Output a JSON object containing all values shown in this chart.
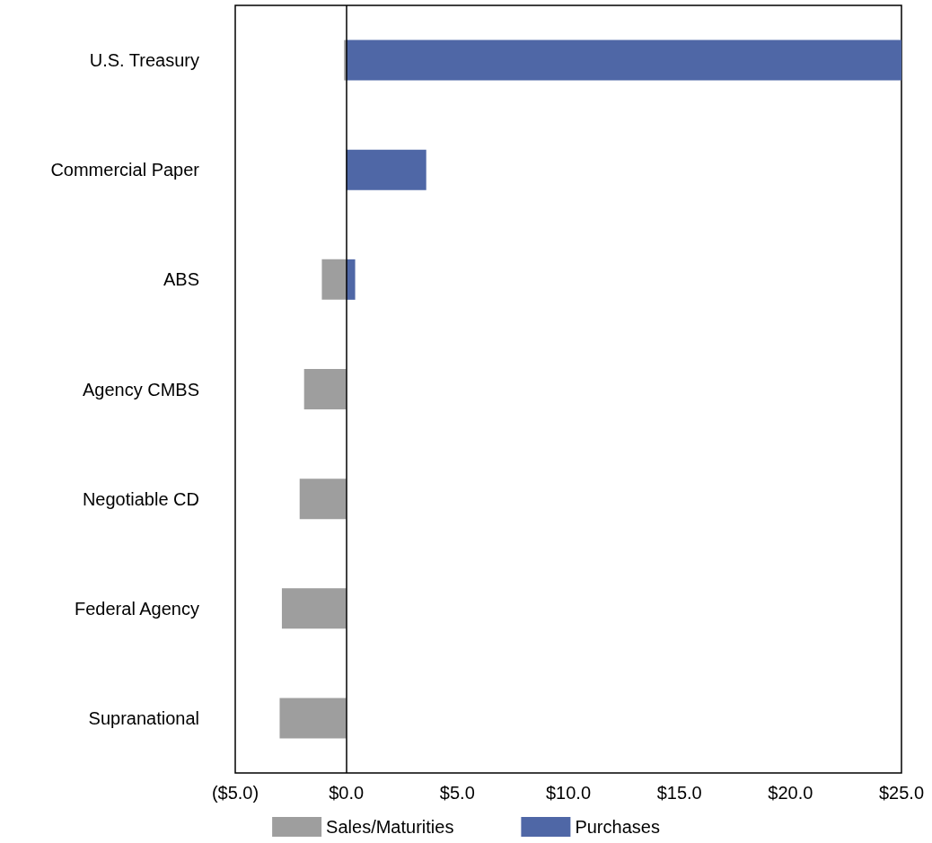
{
  "chart_data": {
    "type": "bar",
    "orientation": "horizontal",
    "stacked": true,
    "categories": [
      "U.S. Treasury",
      "Commercial Paper",
      "ABS",
      "Agency CMBS",
      "Negotiable CD",
      "Federal Agency",
      "Supranational"
    ],
    "series": [
      {
        "name": "Sales/Maturities",
        "color": "#9e9e9e",
        "values": [
          -0.1,
          0,
          -1.1,
          -1.9,
          -2.1,
          -2.9,
          -3.0
        ]
      },
      {
        "name": "Purchases",
        "color": "#4f67a6",
        "values": [
          25.0,
          3.6,
          0.4,
          0,
          0,
          0,
          0
        ]
      }
    ],
    "xlim": [
      -5,
      25
    ],
    "xticks": [
      {
        "value": -5,
        "label": "($5.0)"
      },
      {
        "value": 0,
        "label": "$0.0"
      },
      {
        "value": 5,
        "label": "$5.0"
      },
      {
        "value": 10,
        "label": "$10.0"
      },
      {
        "value": 15,
        "label": "$15.0"
      },
      {
        "value": 20,
        "label": "$20.0"
      },
      {
        "value": 25,
        "label": "$25.0"
      }
    ],
    "ref_lines": [
      {
        "axis": "x",
        "value": 0,
        "color": "#000000",
        "line_style": "solid"
      }
    ],
    "grid": false,
    "legend": "bottom"
  }
}
